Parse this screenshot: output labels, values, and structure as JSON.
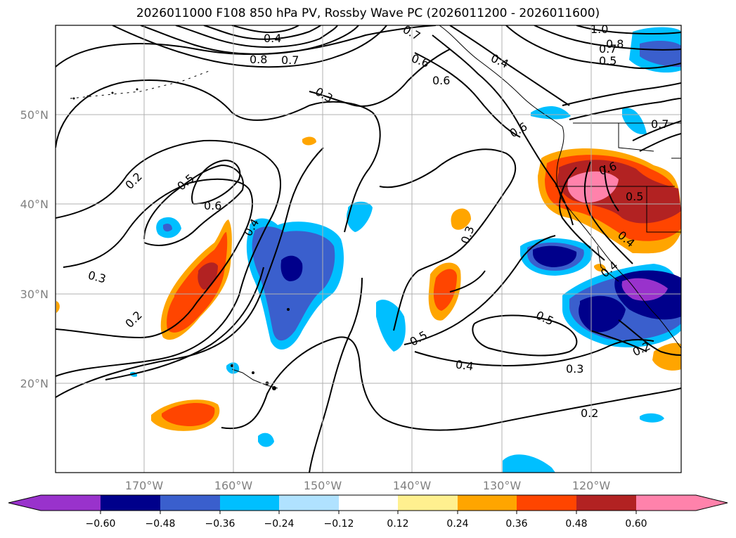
{
  "title": "2026011000 F108 850 hPa PV, Rossby Wave PC (2026011200 - 2026011600)",
  "map": {
    "lat_labels": [
      "50°N",
      "40°N",
      "30°N",
      "20°N"
    ],
    "lon_labels": [
      "170°W",
      "160°W",
      "150°W",
      "140°W",
      "130°W",
      "120°W"
    ],
    "contour_labels": [
      "0.2",
      "0.5",
      "0.6",
      "0.4",
      "0.3",
      "0.2",
      "0.3",
      "0.7",
      "0.8",
      "0.4",
      "0.7",
      "0.6",
      "0.4",
      "1.0",
      "0.8",
      "0.7",
      "0.5",
      "0.6",
      "0.7",
      "0.6",
      "0.5",
      "0.4",
      "0.3",
      "0.5",
      "0.5",
      "0.4",
      "0.2",
      "0.2",
      "0.3",
      "0.4",
      "0.6"
    ]
  },
  "colorbar": {
    "ticks": [
      "−0.60",
      "−0.48",
      "−0.36",
      "−0.24",
      "−0.12",
      "0.12",
      "0.24",
      "0.36",
      "0.48",
      "0.60"
    ],
    "colors": [
      "#9932cc",
      "#00008b",
      "#3a5fcd",
      "#00bfff",
      "#b0e2ff",
      "#ffffff",
      "#fff08f",
      "#ffa500",
      "#ff4500",
      "#b22222",
      "#ff82ab"
    ]
  }
}
